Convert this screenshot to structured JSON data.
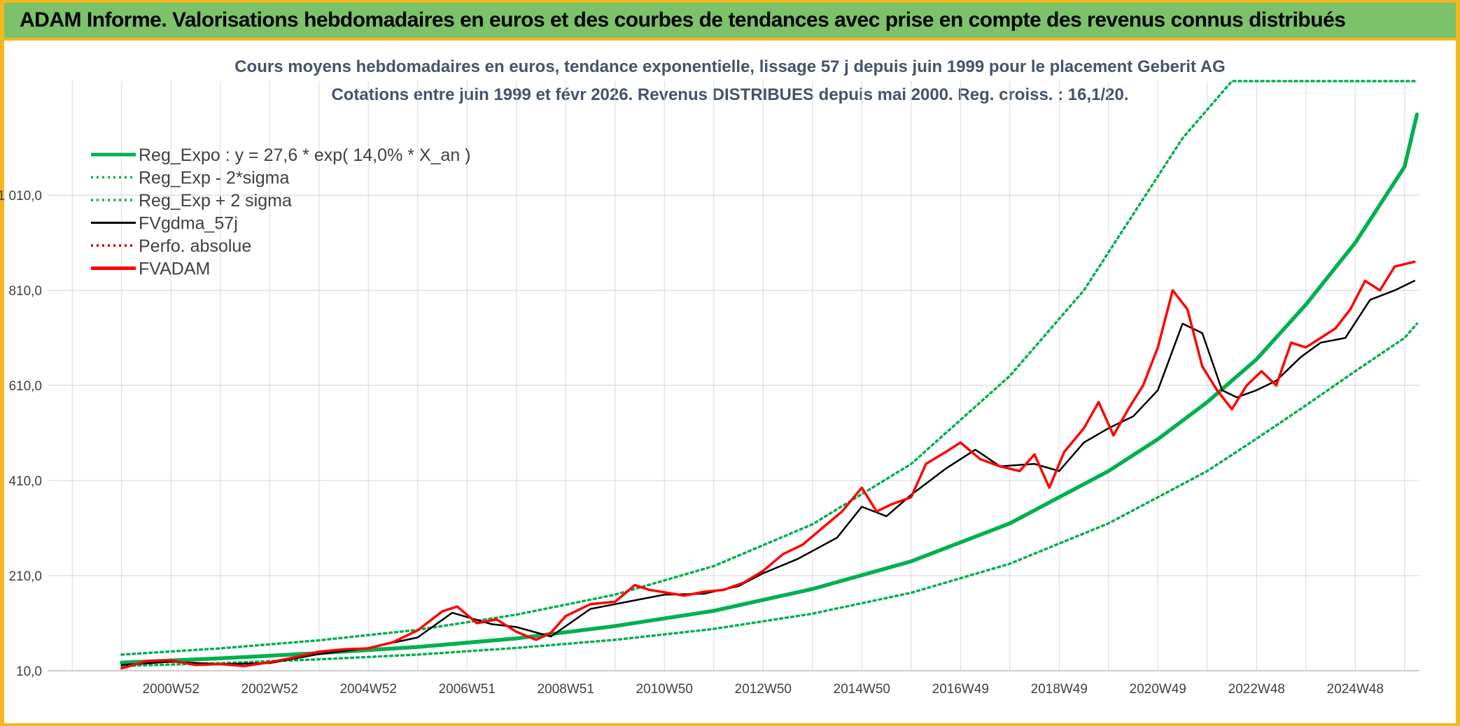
{
  "header": {
    "title": "ADAM Informe. Valorisations hebdomadaires en euros et des courbes de tendances avec prise en compte des revenus connus distribués"
  },
  "colors": {
    "header_bg": "#7cc26a",
    "frame": "#f3b820",
    "trend": "#00b050",
    "avg": "#000000",
    "price": "#ff0000",
    "perf": "#c00000"
  },
  "chart_data": {
    "type": "line",
    "title": "Cours moyens hebdomadaires en euros, tendance exponentielle, lissage 57 j depuis juin 1999 pour le placement Geberit AG",
    "subtitle": "Cotations entre juin 1999 et févr 2026. Revenus DISTRIBUES depuis mai 2000. Reg. croiss. : 16,1/20.",
    "x_range": [
      1998.5,
      2026.3
    ],
    "y_range": [
      10,
      1250
    ],
    "y_ticks": [
      "1 010,0",
      "810,0",
      "610,0",
      "410,0",
      "210,0",
      "10,0"
    ],
    "y_tick_values": [
      1010,
      810,
      610,
      410,
      210,
      10
    ],
    "x_ticks": [
      "2000W52",
      "2002W52",
      "2004W52",
      "2006W51",
      "2008W51",
      "2010W50",
      "2012W50",
      "2014W50",
      "2016W49",
      "2018W49",
      "2020W49",
      "2022W48",
      "2024W48"
    ],
    "x_tick_values": [
      2001.0,
      2003.0,
      2005.0,
      2007.0,
      2009.0,
      2011.0,
      2013.0,
      2015.0,
      2017.0,
      2019.0,
      2021.0,
      2023.0,
      2025.0
    ],
    "legend": [
      {
        "name": "Reg_Expo : y = 27,6 * exp( 14,0% *  X_an )",
        "style": "solid-thick",
        "color": "#00b050"
      },
      {
        "name": "Reg_Exp - 2*sigma",
        "style": "dotted",
        "color": "#00b050"
      },
      {
        "name": "Reg_Exp + 2 sigma",
        "style": "dotted",
        "color": "#00b050"
      },
      {
        "name": "FVgdma_57j",
        "style": "solid",
        "color": "#000000"
      },
      {
        "name": "Perfo. absolue",
        "style": "dotted",
        "color": "#c00000"
      },
      {
        "name": "FVADAM",
        "style": "solid-thick",
        "color": "#ff0000"
      }
    ],
    "series": [
      {
        "name": "Reg_Expo : y = 27,6 * exp( 14,0% *  X_an )",
        "x": [
          2000.0,
          2002.0,
          2004.0,
          2006.0,
          2008.0,
          2010.0,
          2012.0,
          2014.0,
          2016.0,
          2018.0,
          2020.0,
          2021.0,
          2022.0,
          2023.0,
          2024.0,
          2025.0,
          2026.0,
          2026.25
        ],
        "y": [
          27,
          36,
          47,
          60,
          78,
          104,
          136,
          182,
          240,
          320,
          430,
          497,
          575,
          665,
          780,
          910,
          1070,
          1180
        ]
      },
      {
        "name": "Reg_Exp - 2*sigma",
        "x": [
          2000.0,
          2002.0,
          2004.0,
          2006.0,
          2008.0,
          2010.0,
          2012.0,
          2014.0,
          2016.0,
          2018.0,
          2020.0,
          2022.0,
          2023.0,
          2024.0,
          2025.0,
          2026.0,
          2026.25
        ],
        "y": [
          20,
          26,
          34,
          44,
          58,
          75,
          98,
          130,
          174,
          235,
          320,
          430,
          498,
          568,
          640,
          710,
          740
        ]
      },
      {
        "name": "Reg_Exp + 2 sigma",
        "x": [
          2000.0,
          2002.0,
          2004.0,
          2006.0,
          2008.0,
          2010.0,
          2012.0,
          2014.0,
          2016.0,
          2018.0,
          2019.5,
          2020.5,
          2021.5,
          2022.5,
          2023.0,
          2026.25
        ],
        "y": [
          44,
          57,
          74,
          96,
          128,
          170,
          230,
          318,
          445,
          630,
          810,
          970,
          1130,
          1250,
          1250,
          1250
        ]
      },
      {
        "name": "FVgdma_57j",
        "x": [
          2000.0,
          2001.0,
          2002.0,
          2003.0,
          2004.0,
          2005.0,
          2006.0,
          2006.7,
          2007.5,
          2008.0,
          2008.7,
          2009.5,
          2010.5,
          2011.0,
          2011.8,
          2012.5,
          2013.0,
          2013.7,
          2014.5,
          2015.0,
          2015.5,
          2016.0,
          2016.7,
          2017.3,
          2017.8,
          2018.5,
          2019.0,
          2019.5,
          2020.0,
          2020.5,
          2021.0,
          2021.5,
          2021.9,
          2022.3,
          2022.6,
          2023.0,
          2023.4,
          2023.9,
          2024.3,
          2024.8,
          2025.3,
          2025.8,
          2026.2
        ],
        "y": [
          22,
          29,
          24,
          26,
          45,
          58,
          80,
          132,
          108,
          102,
          82,
          140,
          160,
          170,
          172,
          188,
          215,
          245,
          290,
          355,
          335,
          380,
          435,
          475,
          440,
          445,
          430,
          490,
          520,
          545,
          600,
          740,
          720,
          600,
          585,
          600,
          620,
          670,
          700,
          710,
          790,
          810,
          830
        ]
      },
      {
        "name": "FVADAM",
        "x": [
          2000.0,
          2000.5,
          2001.0,
          2001.5,
          2002.0,
          2002.5,
          2003.0,
          2003.5,
          2004.0,
          2004.5,
          2005.0,
          2005.5,
          2006.0,
          2006.5,
          2006.8,
          2007.2,
          2007.6,
          2008.0,
          2008.4,
          2008.7,
          2009.0,
          2009.5,
          2010.0,
          2010.4,
          2010.7,
          2011.0,
          2011.4,
          2011.8,
          2012.2,
          2012.6,
          2013.0,
          2013.4,
          2013.8,
          2014.2,
          2014.6,
          2015.0,
          2015.3,
          2015.6,
          2016.0,
          2016.3,
          2016.7,
          2017.0,
          2017.4,
          2017.8,
          2018.2,
          2018.5,
          2018.8,
          2019.1,
          2019.5,
          2019.8,
          2020.1,
          2020.4,
          2020.7,
          2021.0,
          2021.3,
          2021.6,
          2021.9,
          2022.2,
          2022.5,
          2022.8,
          2023.1,
          2023.4,
          2023.7,
          2024.0,
          2024.3,
          2024.6,
          2024.9,
          2025.2,
          2025.5,
          2025.8,
          2026.2
        ],
        "y": [
          15,
          30,
          32,
          22,
          24,
          20,
          28,
          38,
          50,
          55,
          57,
          70,
          95,
          135,
          145,
          110,
          118,
          92,
          75,
          90,
          125,
          150,
          155,
          190,
          180,
          175,
          168,
          176,
          180,
          195,
          220,
          255,
          275,
          310,
          345,
          395,
          345,
          360,
          375,
          445,
          470,
          490,
          455,
          440,
          430,
          465,
          395,
          470,
          520,
          575,
          505,
          560,
          610,
          690,
          810,
          770,
          650,
          600,
          560,
          610,
          640,
          610,
          700,
          690,
          710,
          730,
          770,
          830,
          810,
          860,
          870
        ]
      },
      {
        "name": "Perfo. absolue",
        "x": [
          2000.0,
          2002.0,
          2004.0,
          2006.0,
          2008.0,
          2010.0,
          2012.0,
          2014.0,
          2016.0,
          2018.0,
          2020.0,
          2022.0,
          2024.0,
          2026.2
        ],
        "y": [
          15,
          24,
          50,
          95,
          92,
          155,
          180,
          310,
          375,
          430,
          505,
          600,
          710,
          870
        ]
      }
    ]
  }
}
